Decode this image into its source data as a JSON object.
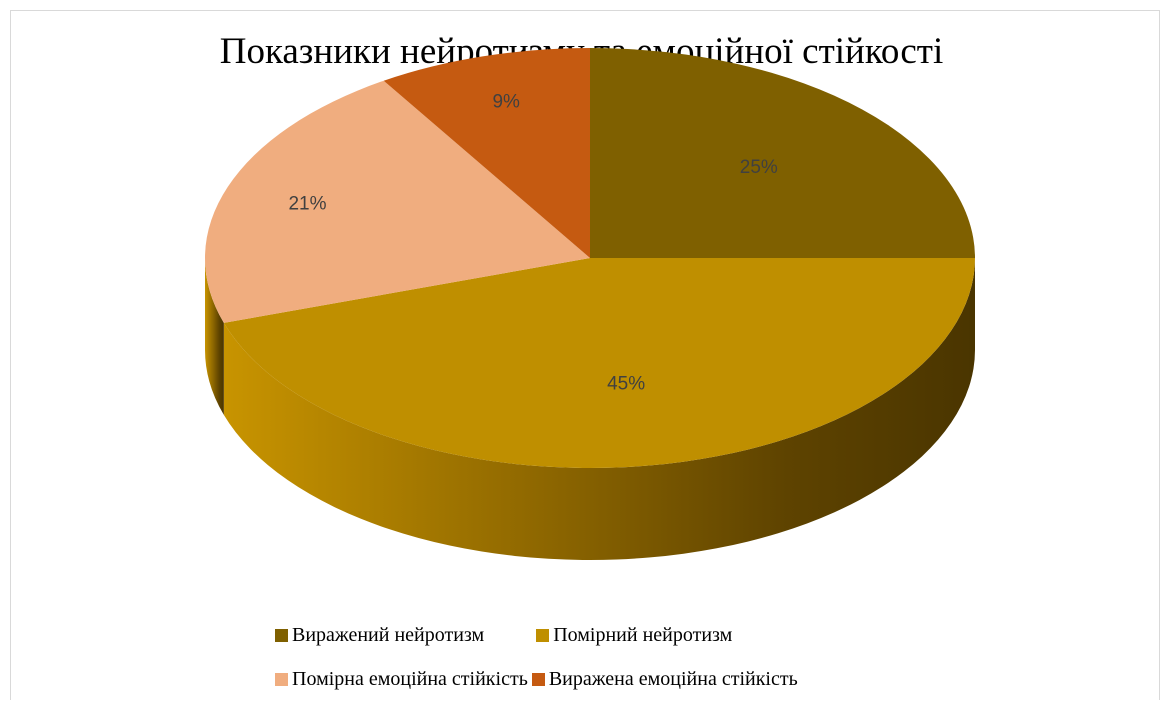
{
  "chart_data": {
    "type": "pie",
    "title": "Показники нейротизму та емоційної стійкості",
    "three_d": true,
    "categories": [
      "Виражений нейротизм",
      "Помірний нейротизм",
      "Помірна емоційна стійкість",
      "Виражена емоційна стійкість"
    ],
    "values": [
      25,
      45,
      21,
      9
    ],
    "labels": [
      "25%",
      "45%",
      "21%",
      "9%"
    ],
    "colors": [
      "#7f6000",
      "#bf8f00",
      "#f0ad7f",
      "#c55a11"
    ],
    "legend_position": "bottom"
  }
}
